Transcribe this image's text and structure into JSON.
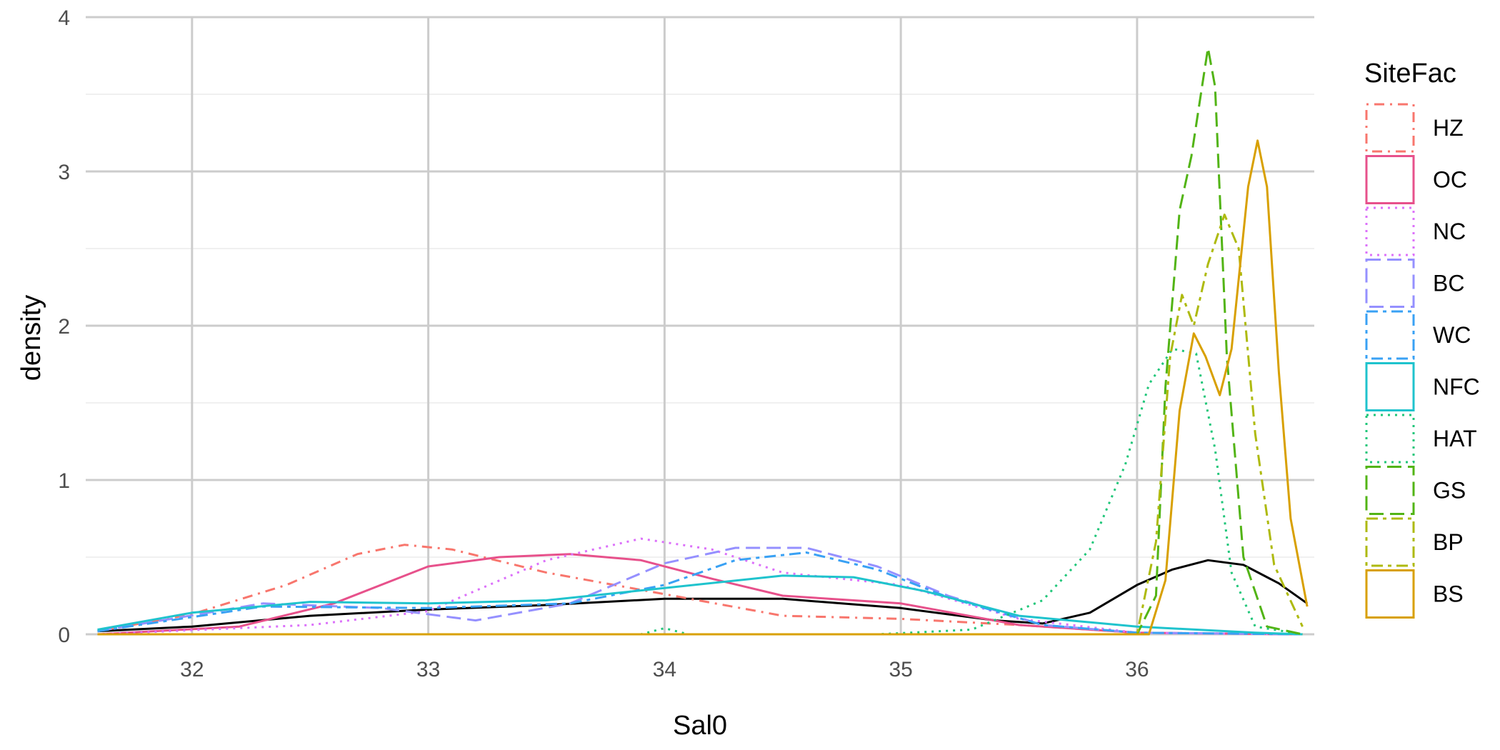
{
  "chart_data": {
    "type": "line",
    "title": "",
    "xlabel": "Sal0",
    "ylabel": "density",
    "xlim": [
      31.55,
      36.75
    ],
    "ylim": [
      0,
      4
    ],
    "x_ticks": [
      32,
      33,
      34,
      35,
      36
    ],
    "y_ticks": [
      0,
      1,
      2,
      3,
      4
    ],
    "grid": true,
    "legend": {
      "title": "SiteFac",
      "position": "right"
    },
    "overall_density": {
      "color": "#000000",
      "dash": "solid",
      "points": [
        [
          31.6,
          0.02
        ],
        [
          32.0,
          0.05
        ],
        [
          32.5,
          0.12
        ],
        [
          33.0,
          0.16
        ],
        [
          33.5,
          0.19
        ],
        [
          34.0,
          0.23
        ],
        [
          34.5,
          0.23
        ],
        [
          35.0,
          0.17
        ],
        [
          35.4,
          0.09
        ],
        [
          35.6,
          0.07
        ],
        [
          35.8,
          0.14
        ],
        [
          36.0,
          0.32
        ],
        [
          36.15,
          0.42
        ],
        [
          36.3,
          0.48
        ],
        [
          36.45,
          0.45
        ],
        [
          36.6,
          0.33
        ],
        [
          36.72,
          0.2
        ]
      ]
    },
    "series": [
      {
        "name": "HZ",
        "color": "#F8766D",
        "dash": "dashdot",
        "points": [
          [
            31.6,
            0.02
          ],
          [
            32.0,
            0.13
          ],
          [
            32.4,
            0.32
          ],
          [
            32.7,
            0.52
          ],
          [
            32.9,
            0.58
          ],
          [
            33.1,
            0.55
          ],
          [
            33.5,
            0.4
          ],
          [
            34.0,
            0.26
          ],
          [
            34.5,
            0.12
          ],
          [
            35.0,
            0.1
          ],
          [
            35.5,
            0.06
          ],
          [
            36.0,
            0.01
          ],
          [
            36.7,
            0.0
          ]
        ]
      },
      {
        "name": "OC",
        "color": "#E7518B",
        "dash": "solid",
        "points": [
          [
            31.6,
            0.0
          ],
          [
            32.2,
            0.05
          ],
          [
            32.6,
            0.2
          ],
          [
            33.0,
            0.44
          ],
          [
            33.3,
            0.5
          ],
          [
            33.6,
            0.52
          ],
          [
            33.9,
            0.48
          ],
          [
            34.2,
            0.36
          ],
          [
            34.5,
            0.25
          ],
          [
            35.0,
            0.2
          ],
          [
            35.5,
            0.06
          ],
          [
            36.0,
            0.01
          ],
          [
            36.7,
            0.0
          ]
        ]
      },
      {
        "name": "NC",
        "color": "#DC71FA",
        "dash": "dotted",
        "points": [
          [
            31.6,
            0.0
          ],
          [
            32.5,
            0.06
          ],
          [
            33.0,
            0.15
          ],
          [
            33.5,
            0.48
          ],
          [
            33.9,
            0.62
          ],
          [
            34.2,
            0.55
          ],
          [
            34.5,
            0.4
          ],
          [
            35.0,
            0.32
          ],
          [
            35.5,
            0.1
          ],
          [
            36.0,
            0.01
          ],
          [
            36.7,
            0.0
          ]
        ]
      },
      {
        "name": "BC",
        "color": "#9590FF",
        "dash": "longdash",
        "points": [
          [
            31.6,
            0.02
          ],
          [
            32.3,
            0.2
          ],
          [
            32.8,
            0.17
          ],
          [
            33.2,
            0.09
          ],
          [
            33.6,
            0.2
          ],
          [
            34.0,
            0.46
          ],
          [
            34.3,
            0.56
          ],
          [
            34.6,
            0.56
          ],
          [
            34.9,
            0.44
          ],
          [
            35.2,
            0.25
          ],
          [
            35.6,
            0.06
          ],
          [
            36.0,
            0.01
          ],
          [
            36.7,
            0.0
          ]
        ]
      },
      {
        "name": "WC",
        "color": "#39A1F4",
        "dash": "twodash",
        "points": [
          [
            31.6,
            0.02
          ],
          [
            32.3,
            0.18
          ],
          [
            33.0,
            0.17
          ],
          [
            33.6,
            0.2
          ],
          [
            34.0,
            0.32
          ],
          [
            34.3,
            0.48
          ],
          [
            34.6,
            0.53
          ],
          [
            34.9,
            0.42
          ],
          [
            35.2,
            0.24
          ],
          [
            35.6,
            0.06
          ],
          [
            36.0,
            0.01
          ],
          [
            36.7,
            0.0
          ]
        ]
      },
      {
        "name": "NFC",
        "color": "#1FC3CD",
        "dash": "solid",
        "points": [
          [
            31.6,
            0.03
          ],
          [
            32.0,
            0.14
          ],
          [
            32.5,
            0.21
          ],
          [
            33.0,
            0.2
          ],
          [
            33.5,
            0.22
          ],
          [
            34.0,
            0.3
          ],
          [
            34.5,
            0.38
          ],
          [
            34.8,
            0.37
          ],
          [
            35.1,
            0.28
          ],
          [
            35.5,
            0.12
          ],
          [
            36.0,
            0.05
          ],
          [
            36.5,
            0.01
          ],
          [
            36.7,
            0.0
          ]
        ]
      },
      {
        "name": "HAT",
        "color": "#1FC679",
        "dash": "dotted",
        "points": [
          [
            31.6,
            0.0
          ],
          [
            33.9,
            0.0
          ],
          [
            34.0,
            0.04
          ],
          [
            34.1,
            0.0
          ],
          [
            34.9,
            0.0
          ],
          [
            35.3,
            0.03
          ],
          [
            35.6,
            0.22
          ],
          [
            35.8,
            0.55
          ],
          [
            35.95,
            1.1
          ],
          [
            36.05,
            1.62
          ],
          [
            36.15,
            1.85
          ],
          [
            36.25,
            1.82
          ],
          [
            36.33,
            1.2
          ],
          [
            36.4,
            0.4
          ],
          [
            36.5,
            0.05
          ],
          [
            36.7,
            0.0
          ]
        ]
      },
      {
        "name": "GS",
        "color": "#52B415",
        "dash": "longdash",
        "points": [
          [
            31.6,
            0.0
          ],
          [
            36.0,
            0.0
          ],
          [
            36.08,
            0.25
          ],
          [
            36.12,
            1.6
          ],
          [
            36.18,
            2.75
          ],
          [
            36.23,
            3.1
          ],
          [
            36.28,
            3.6
          ],
          [
            36.3,
            3.8
          ],
          [
            36.33,
            3.55
          ],
          [
            36.38,
            1.8
          ],
          [
            36.45,
            0.5
          ],
          [
            36.55,
            0.05
          ],
          [
            36.7,
            0.0
          ]
        ]
      },
      {
        "name": "BP",
        "color": "#AEBA0F",
        "dash": "twodash",
        "points": [
          [
            31.6,
            0.0
          ],
          [
            36.0,
            0.0
          ],
          [
            36.08,
            0.6
          ],
          [
            36.14,
            1.8
          ],
          [
            36.19,
            2.2
          ],
          [
            36.24,
            2.0
          ],
          [
            36.3,
            2.4
          ],
          [
            36.37,
            2.72
          ],
          [
            36.43,
            2.5
          ],
          [
            36.5,
            1.3
          ],
          [
            36.58,
            0.45
          ],
          [
            36.7,
            0.05
          ]
        ]
      },
      {
        "name": "BS",
        "color": "#D8A000",
        "dash": "solid",
        "points": [
          [
            31.6,
            0.0
          ],
          [
            36.05,
            0.0
          ],
          [
            36.12,
            0.35
          ],
          [
            36.18,
            1.45
          ],
          [
            36.24,
            1.95
          ],
          [
            36.29,
            1.8
          ],
          [
            36.35,
            1.55
          ],
          [
            36.4,
            1.85
          ],
          [
            36.47,
            2.9
          ],
          [
            36.51,
            3.2
          ],
          [
            36.55,
            2.9
          ],
          [
            36.6,
            1.7
          ],
          [
            36.65,
            0.75
          ],
          [
            36.72,
            0.18
          ]
        ]
      }
    ]
  }
}
